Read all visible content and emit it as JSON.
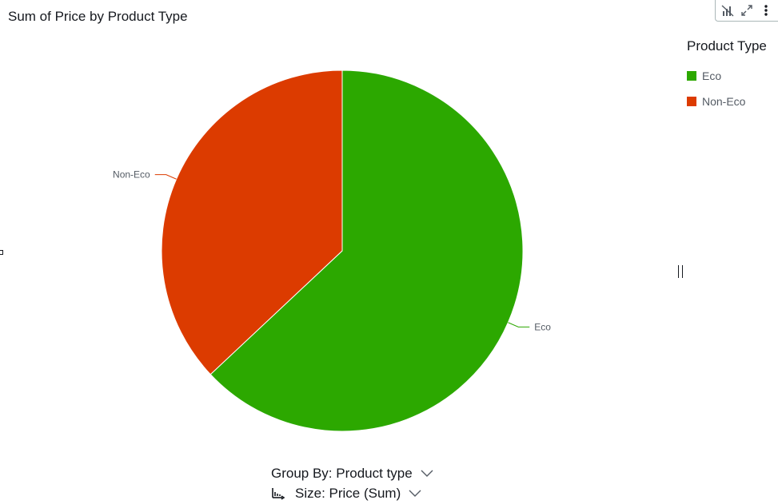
{
  "chart_data": {
    "type": "pie",
    "title": "Sum of Price by Product Type",
    "legend_title": "Product Type",
    "legend_placement": "top-right",
    "slices": [
      {
        "label": "Eco",
        "value": 63,
        "color": "#2ca800"
      },
      {
        "label": "Non-Eco",
        "value": 37,
        "color": "#dc3b00"
      }
    ]
  },
  "toolbar": {
    "icons": [
      "chart-type-icon",
      "expand-icon",
      "more-options-icon"
    ]
  },
  "controls": {
    "group_by": "Group By: Product type",
    "size": "Size: Price (Sum)"
  }
}
